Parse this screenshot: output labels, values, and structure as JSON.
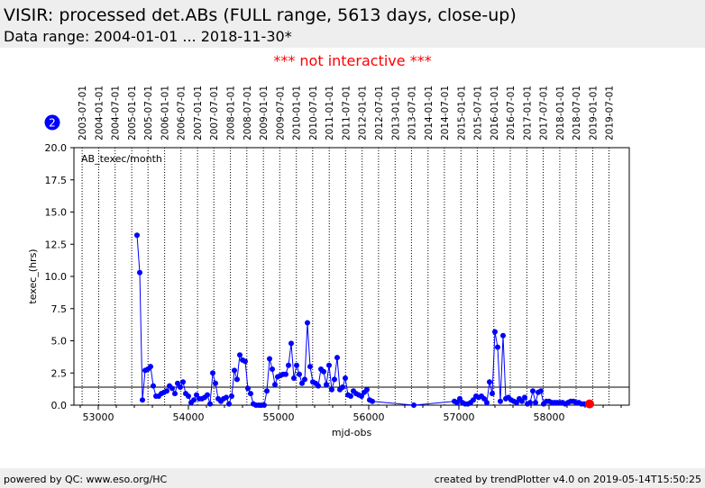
{
  "header": {
    "title": "VISIR: processed det.ABs (FULL range, 5613 days, close-up)",
    "subtitle": "Data range: 2004-01-01 ... 2018-11-30*"
  },
  "notice": "*** not interactive ***",
  "badge": "2",
  "footer": {
    "left": "powered by QC: www.eso.org/HC",
    "right": "created by trendPlotter v4.0 on 2019-05-14T15:50:25"
  },
  "colors": {
    "series": "#0000ff",
    "highlight": "#ff0000",
    "panel": "#eeeeee"
  },
  "chart_data": {
    "type": "line",
    "xlabel": "mjd-obs",
    "ylabel": "texec_(hrs)",
    "panel_label": "AB_texec/month",
    "xlim": [
      52730,
      58890
    ],
    "ylim": [
      0,
      20
    ],
    "x_ticks": [
      53000,
      54000,
      55000,
      56000,
      57000,
      58000
    ],
    "y_ticks": [
      0.0,
      2.5,
      5.0,
      7.5,
      10.0,
      12.5,
      15.0,
      17.5,
      20.0
    ],
    "grid": "vertical dotted lines at half-year date marks",
    "reference_line": 1.4,
    "date_ticks": [
      {
        "label": "2003-07-01",
        "mjd": 52821
      },
      {
        "label": "2004-01-01",
        "mjd": 53005
      },
      {
        "label": "2004-07-01",
        "mjd": 53187
      },
      {
        "label": "2005-01-01",
        "mjd": 53371
      },
      {
        "label": "2005-07-01",
        "mjd": 53552
      },
      {
        "label": "2006-01-01",
        "mjd": 53736
      },
      {
        "label": "2006-07-01",
        "mjd": 53917
      },
      {
        "label": "2007-01-01",
        "mjd": 54101
      },
      {
        "label": "2007-07-01",
        "mjd": 54282
      },
      {
        "label": "2008-01-01",
        "mjd": 54466
      },
      {
        "label": "2008-07-01",
        "mjd": 54648
      },
      {
        "label": "2009-01-01",
        "mjd": 54832
      },
      {
        "label": "2009-07-01",
        "mjd": 55013
      },
      {
        "label": "2010-01-01",
        "mjd": 55197
      },
      {
        "label": "2010-07-01",
        "mjd": 55378
      },
      {
        "label": "2011-01-01",
        "mjd": 55562
      },
      {
        "label": "2011-07-01",
        "mjd": 55743
      },
      {
        "label": "2012-01-01",
        "mjd": 55927
      },
      {
        "label": "2012-07-01",
        "mjd": 56109
      },
      {
        "label": "2013-01-01",
        "mjd": 56293
      },
      {
        "label": "2013-07-01",
        "mjd": 56474
      },
      {
        "label": "2014-01-01",
        "mjd": 56658
      },
      {
        "label": "2014-07-01",
        "mjd": 56839
      },
      {
        "label": "2015-01-01",
        "mjd": 57023
      },
      {
        "label": "2015-07-01",
        "mjd": 57204
      },
      {
        "label": "2016-01-01",
        "mjd": 57388
      },
      {
        "label": "2016-07-01",
        "mjd": 57570
      },
      {
        "label": "2017-01-01",
        "mjd": 57754
      },
      {
        "label": "2017-07-01",
        "mjd": 57935
      },
      {
        "label": "2018-01-01",
        "mjd": 58119
      },
      {
        "label": "2018-07-01",
        "mjd": 58300
      },
      {
        "label": "2019-01-01",
        "mjd": 58484
      },
      {
        "label": "2019-07-01",
        "mjd": 58665
      }
    ],
    "series": [
      {
        "x": [
          53430,
          53460,
          53490,
          53520,
          53550,
          53580,
          53610,
          53640,
          53670,
          53700,
          53730,
          53760,
          53790,
          53820,
          53850,
          53880,
          53910,
          53940,
          53970,
          54000,
          54030,
          54060,
          54090,
          54120,
          54150,
          54180,
          54210,
          54240,
          54270,
          54300,
          54330,
          54360,
          54390,
          54420,
          54450,
          54480,
          54510,
          54540,
          54570,
          54600,
          54630,
          54660,
          54690,
          54720,
          54750,
          54780,
          54810,
          54840,
          54870,
          54900,
          54930,
          54960,
          54990,
          55020,
          55050,
          55080,
          55110,
          55140,
          55170,
          55200,
          55230,
          55260,
          55290,
          55320,
          55350,
          55380,
          55410,
          55440,
          55470,
          55500,
          55530,
          55560,
          55590,
          55620,
          55650,
          55680,
          55710,
          55740,
          55770,
          55800,
          55830,
          55860,
          55890,
          55920,
          55950,
          55980,
          56010,
          56040,
          56500,
          56950,
          56980,
          57010,
          57040,
          57070,
          57100,
          57130,
          57160,
          57190,
          57220,
          57250,
          57280,
          57310,
          57340,
          57370,
          57400,
          57430,
          57460,
          57490,
          57520,
          57550,
          57580,
          57610,
          57640,
          57670,
          57700,
          57730,
          57760,
          57790,
          57820,
          57850,
          57880,
          57910,
          57940,
          57970,
          58000,
          58030,
          58060,
          58090,
          58120,
          58150,
          58180,
          58210,
          58240,
          58270,
          58300,
          58330,
          58360,
          58390,
          58420,
          58450
        ],
        "y": [
          13.2,
          10.3,
          0.4,
          2.7,
          2.8,
          3.0,
          1.5,
          0.7,
          0.7,
          0.9,
          1.0,
          1.1,
          1.5,
          1.3,
          0.9,
          1.7,
          1.4,
          1.8,
          0.9,
          0.7,
          0.2,
          0.4,
          0.8,
          0.5,
          0.5,
          0.6,
          0.8,
          0.1,
          2.5,
          1.7,
          0.5,
          0.3,
          0.5,
          0.6,
          0.1,
          0.7,
          2.7,
          2.0,
          3.9,
          3.5,
          3.4,
          1.3,
          0.9,
          0.1,
          0.0,
          0.0,
          0.0,
          0.0,
          1.1,
          3.6,
          2.8,
          1.6,
          2.2,
          2.3,
          2.4,
          2.4,
          3.1,
          4.8,
          2.1,
          3.1,
          2.4,
          1.7,
          2.0,
          6.4,
          3.0,
          1.8,
          1.7,
          1.5,
          2.8,
          2.6,
          1.6,
          3.1,
          1.2,
          2.0,
          3.7,
          1.2,
          1.4,
          2.1,
          0.8,
          0.7,
          1.1,
          0.9,
          0.8,
          0.7,
          1.0,
          1.2,
          0.4,
          0.3,
          0.0,
          0.3,
          0.2,
          0.5,
          0.2,
          0.1,
          0.1,
          0.2,
          0.4,
          0.7,
          0.6,
          0.7,
          0.5,
          0.2,
          1.8,
          0.9,
          5.7,
          4.5,
          0.3,
          5.4,
          0.5,
          0.6,
          0.4,
          0.3,
          0.2,
          0.5,
          0.3,
          0.6,
          0.1,
          0.2,
          1.1,
          0.2,
          1.0,
          1.1,
          0.1,
          0.3,
          0.3,
          0.2,
          0.2,
          0.2,
          0.2,
          0.2,
          0.1,
          0.2,
          0.3,
          0.3,
          0.2,
          0.2,
          0.1,
          0.1,
          0.1,
          0.1
        ]
      }
    ],
    "highlight_point": {
      "x": 58450,
      "y": 0.1
    }
  }
}
